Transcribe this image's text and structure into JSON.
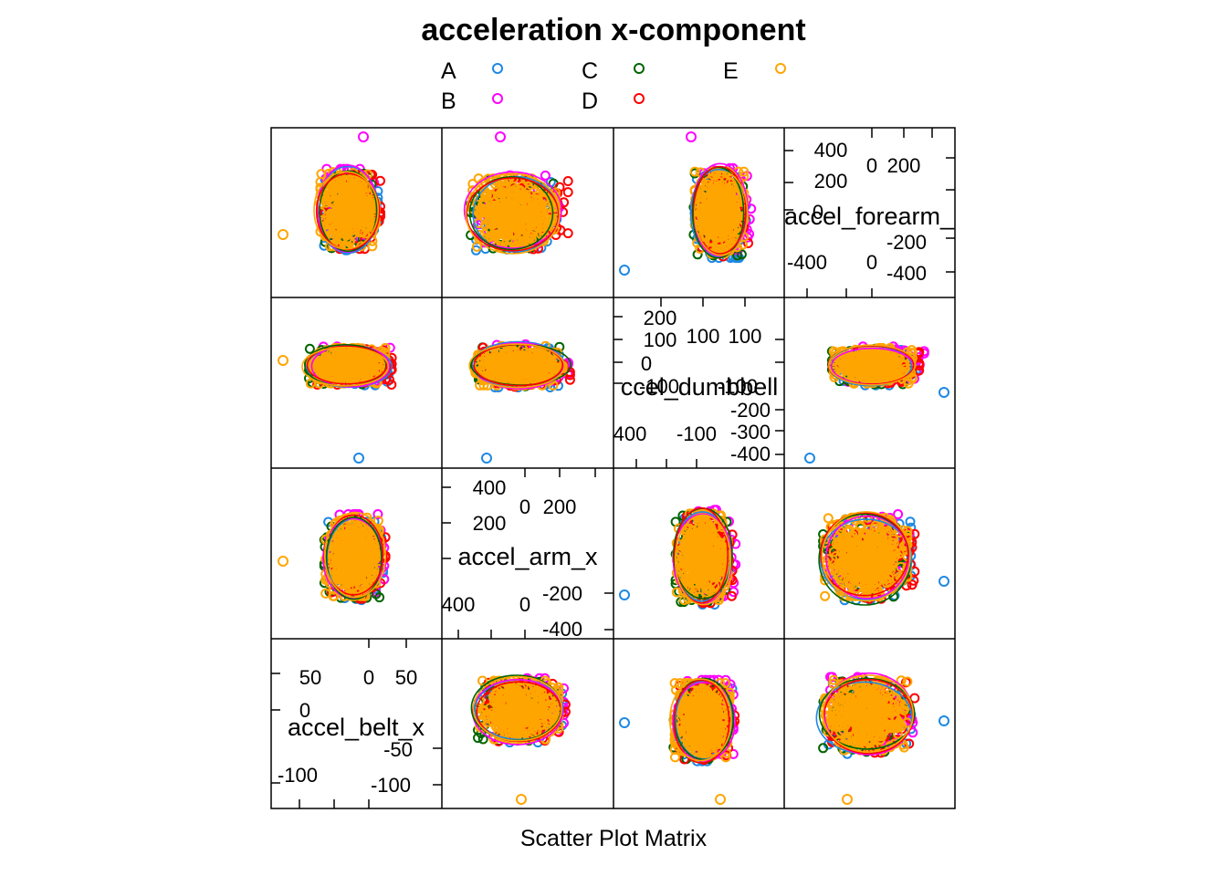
{
  "chart_data": {
    "type": "scatter",
    "title": "acceleration x-component",
    "xlabel": "Scatter Plot Matrix",
    "legend": {
      "placement": "top",
      "entries": [
        {
          "label": "A",
          "color": "#1e88e5"
        },
        {
          "label": "B",
          "color": "#ff00ff"
        },
        {
          "label": "C",
          "color": "#006400"
        },
        {
          "label": "D",
          "color": "#ff0000"
        },
        {
          "label": "E",
          "color": "#ffa500"
        }
      ]
    },
    "variables": [
      {
        "name": "accel_forearm_",
        "ticks_upper": [
          "400",
          "200",
          "0",
          "0",
          "200"
        ],
        "ticks_lower": [
          "-400",
          "0",
          "-200",
          "-400"
        ]
      },
      {
        "name": "ccel_dumbbell",
        "ticks_upper": [
          "200",
          "100",
          "100",
          "100",
          "0",
          "-100",
          "-100"
        ],
        "ticks_lower": [
          "-200",
          "400",
          "-100",
          "-300",
          "-400"
        ]
      },
      {
        "name": "accel_arm_x",
        "ticks_upper": [
          "400",
          "200",
          "0",
          "200"
        ],
        "ticks_lower": [
          "400",
          "0",
          "-200",
          "-400"
        ]
      },
      {
        "name": "accel_belt_x",
        "ticks_upper": [
          "50",
          "0",
          "50",
          "0"
        ],
        "ticks_lower": [
          "-50",
          "-100",
          "-100"
        ]
      }
    ]
  }
}
